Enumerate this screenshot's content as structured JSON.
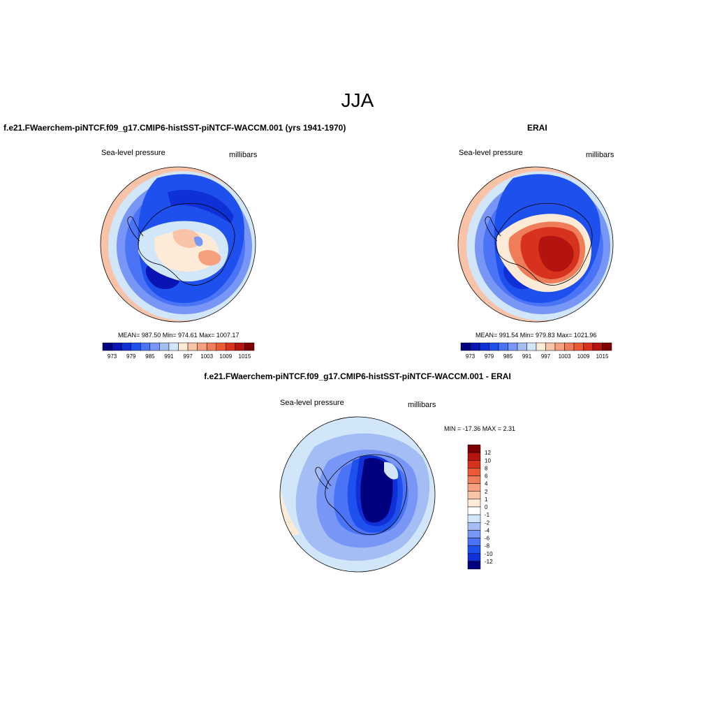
{
  "figure": {
    "title": "JJA"
  },
  "panels": {
    "model": {
      "title": "f.e21.FWaerchem-piNTCF.f09_g17.CMIP6-histSST-piNTCF-WACCM.001 (yrs 1941-1970)",
      "left_label": "Sea-level pressure",
      "right_label": "millibars",
      "stats": "MEAN= 987.50  Min= 974.61  Max= 1007.17"
    },
    "obs": {
      "title": "ERAI",
      "left_label": "Sea-level pressure",
      "right_label": "millibars",
      "stats": "MEAN= 991.54  Min= 979.83  Max= 1021.96"
    },
    "diff": {
      "title": "f.e21.FWaerchem-piNTCF.f09_g17.CMIP6-histSST-piNTCF-WACCM.001 - ERAI",
      "left_label": "Sea-level pressure",
      "right_label": "millibars",
      "stats": "MIN = -17.36 MAX =   2.31"
    }
  },
  "chart_data": [
    {
      "type": "heatmap",
      "name": "model",
      "projection": "south-polar-stereographic",
      "colorbar": {
        "orientation": "horizontal",
        "tick_labels": [
          "973",
          "979",
          "985",
          "991",
          "997",
          "1003",
          "1009",
          "1015"
        ],
        "colors": [
          "#00007f",
          "#0a14b4",
          "#0f30d7",
          "#1e50ee",
          "#4b73f5",
          "#7896f5",
          "#a5bdf5",
          "#d2e6fa",
          "#fdebd7",
          "#f8c3a6",
          "#f5a07f",
          "#f07d5a",
          "#eb5a32",
          "#d7321e",
          "#b4140f",
          "#7f0000"
        ]
      },
      "stats": {
        "mean": 987.5,
        "min": 974.61,
        "max": 1007.17
      }
    },
    {
      "type": "heatmap",
      "name": "obs",
      "projection": "south-polar-stereographic",
      "colorbar": {
        "orientation": "horizontal",
        "tick_labels": [
          "973",
          "979",
          "985",
          "991",
          "997",
          "1003",
          "1009",
          "1015"
        ],
        "colors": [
          "#00007f",
          "#0a14b4",
          "#0f30d7",
          "#1e50ee",
          "#4b73f5",
          "#7896f5",
          "#a5bdf5",
          "#d2e6fa",
          "#fdebd7",
          "#f8c3a6",
          "#f5a07f",
          "#f07d5a",
          "#eb5a32",
          "#d7321e",
          "#b4140f",
          "#7f0000"
        ]
      },
      "stats": {
        "mean": 991.54,
        "min": 979.83,
        "max": 1021.96
      }
    },
    {
      "type": "heatmap",
      "name": "diff",
      "projection": "south-polar-stereographic",
      "colorbar": {
        "orientation": "vertical",
        "tick_labels": [
          "12",
          "10",
          "8",
          "6",
          "4",
          "2",
          "1",
          "0",
          "-1",
          "-2",
          "-4",
          "-6",
          "-8",
          "-10",
          "-12"
        ],
        "colors": [
          "#7f0000",
          "#b4140f",
          "#d7321e",
          "#eb5a32",
          "#f07d5a",
          "#f5a07f",
          "#f8c3a6",
          "#fdebd7",
          "#ffffff",
          "#d2e6fa",
          "#a5bdf5",
          "#7896f5",
          "#4b73f5",
          "#1e50ee",
          "#0f30d7",
          "#00007f"
        ]
      },
      "stats": {
        "min": -17.36,
        "max": 2.31
      }
    }
  ]
}
